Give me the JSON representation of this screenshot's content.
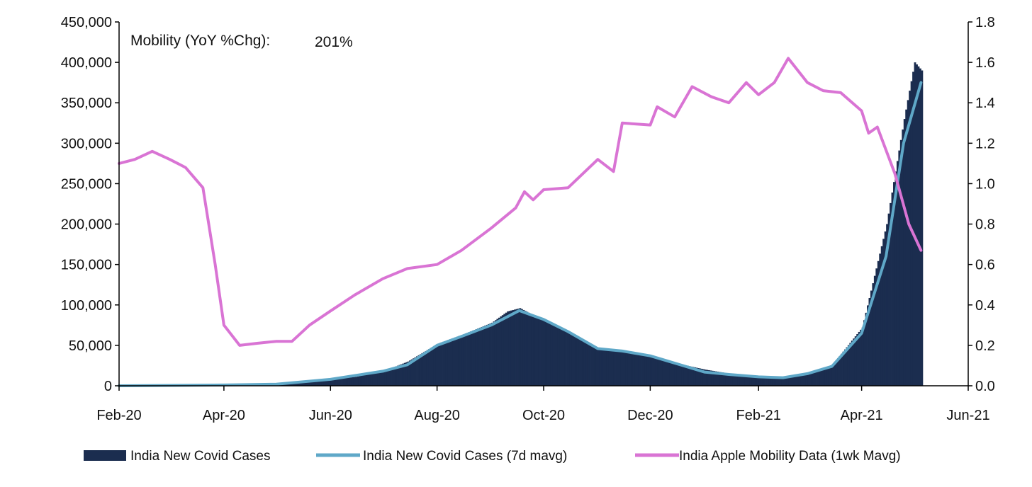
{
  "annotation": {
    "label": "Mobility (YoY %Chg):",
    "value": "201%"
  },
  "colors": {
    "cases_bars": "#1b2d4f",
    "cases_mavg": "#5fa8c8",
    "mobility": "#d974d4",
    "axis": "#000000"
  },
  "chart_data": {
    "type": "bar",
    "title": "",
    "xlabel": "",
    "ylabel": "",
    "x_ticks": [
      "Feb-20",
      "Apr-20",
      "Jun-20",
      "Aug-20",
      "Oct-20",
      "Dec-20",
      "Feb-21",
      "Apr-21",
      "Jun-21"
    ],
    "y_left": {
      "range": [
        0,
        450000
      ],
      "ticks": [
        "0",
        "50,000",
        "100,000",
        "150,000",
        "200,000",
        "250,000",
        "300,000",
        "350,000",
        "400,000",
        "450,000"
      ]
    },
    "y_right": {
      "range": [
        0,
        1.8
      ],
      "ticks": [
        "0.0",
        "0.2",
        "0.4",
        "0.6",
        "0.8",
        "1.0",
        "1.2",
        "1.4",
        "1.6",
        "1.8"
      ]
    },
    "legend_position": "bottom",
    "series": [
      {
        "name": "India New Covid Cases",
        "type": "bar",
        "axis": "left",
        "points": [
          [
            "2020-02-01",
            0
          ],
          [
            "2020-03-01",
            100
          ],
          [
            "2020-04-01",
            1000
          ],
          [
            "2020-04-15",
            1200
          ],
          [
            "2020-05-01",
            2000
          ],
          [
            "2020-05-15",
            4000
          ],
          [
            "2020-06-01",
            8000
          ],
          [
            "2020-06-15",
            11000
          ],
          [
            "2020-07-01",
            18000
          ],
          [
            "2020-07-15",
            30000
          ],
          [
            "2020-08-01",
            52000
          ],
          [
            "2020-08-15",
            63000
          ],
          [
            "2020-09-01",
            78000
          ],
          [
            "2020-09-10",
            92000
          ],
          [
            "2020-09-17",
            96000
          ],
          [
            "2020-10-01",
            80000
          ],
          [
            "2020-10-15",
            67000
          ],
          [
            "2020-11-01",
            46000
          ],
          [
            "2020-11-15",
            44000
          ],
          [
            "2020-12-01",
            38000
          ],
          [
            "2020-12-15",
            28000
          ],
          [
            "2021-01-01",
            20000
          ],
          [
            "2021-01-15",
            15000
          ],
          [
            "2021-02-01",
            11000
          ],
          [
            "2021-02-15",
            11000
          ],
          [
            "2021-03-01",
            15000
          ],
          [
            "2021-03-15",
            26000
          ],
          [
            "2021-04-01",
            72000
          ],
          [
            "2021-04-15",
            200000
          ],
          [
            "2021-04-25",
            330000
          ],
          [
            "2021-05-01",
            400000
          ],
          [
            "2021-05-05",
            390000
          ]
        ]
      },
      {
        "name": "India New Covid Cases (7d mavg)",
        "type": "line",
        "axis": "left",
        "points": [
          [
            "2020-02-01",
            0
          ],
          [
            "2020-04-01",
            1000
          ],
          [
            "2020-05-01",
            2000
          ],
          [
            "2020-06-01",
            8000
          ],
          [
            "2020-07-01",
            18000
          ],
          [
            "2020-07-15",
            26000
          ],
          [
            "2020-08-01",
            50000
          ],
          [
            "2020-08-15",
            61000
          ],
          [
            "2020-09-01",
            75000
          ],
          [
            "2020-09-17",
            93000
          ],
          [
            "2020-10-01",
            82000
          ],
          [
            "2020-10-15",
            67000
          ],
          [
            "2020-11-01",
            46000
          ],
          [
            "2020-11-15",
            43000
          ],
          [
            "2020-12-01",
            37000
          ],
          [
            "2020-12-15",
            28000
          ],
          [
            "2021-01-01",
            17000
          ],
          [
            "2021-01-15",
            14000
          ],
          [
            "2021-02-01",
            11000
          ],
          [
            "2021-02-15",
            10000
          ],
          [
            "2021-03-01",
            15000
          ],
          [
            "2021-03-15",
            24000
          ],
          [
            "2021-04-01",
            65000
          ],
          [
            "2021-04-15",
            160000
          ],
          [
            "2021-04-25",
            300000
          ],
          [
            "2021-05-05",
            375000
          ]
        ]
      },
      {
        "name": "India Apple Mobility Data (1wk Mavg)",
        "type": "line",
        "axis": "right",
        "points": [
          [
            "2020-02-01",
            1.1
          ],
          [
            "2020-02-10",
            1.12
          ],
          [
            "2020-02-20",
            1.16
          ],
          [
            "2020-03-01",
            1.12
          ],
          [
            "2020-03-10",
            1.08
          ],
          [
            "2020-03-20",
            0.98
          ],
          [
            "2020-03-27",
            0.6
          ],
          [
            "2020-04-01",
            0.3
          ],
          [
            "2020-04-10",
            0.2
          ],
          [
            "2020-04-20",
            0.21
          ],
          [
            "2020-05-01",
            0.22
          ],
          [
            "2020-05-10",
            0.22
          ],
          [
            "2020-05-20",
            0.3
          ],
          [
            "2020-06-01",
            0.37
          ],
          [
            "2020-06-15",
            0.45
          ],
          [
            "2020-07-01",
            0.53
          ],
          [
            "2020-07-15",
            0.58
          ],
          [
            "2020-08-01",
            0.6
          ],
          [
            "2020-08-15",
            0.67
          ],
          [
            "2020-09-01",
            0.78
          ],
          [
            "2020-09-15",
            0.88
          ],
          [
            "2020-09-20",
            0.96
          ],
          [
            "2020-09-25",
            0.92
          ],
          [
            "2020-10-01",
            0.97
          ],
          [
            "2020-10-15",
            0.98
          ],
          [
            "2020-11-01",
            1.12
          ],
          [
            "2020-11-10",
            1.06
          ],
          [
            "2020-11-15",
            1.3
          ],
          [
            "2020-12-01",
            1.29
          ],
          [
            "2020-12-05",
            1.38
          ],
          [
            "2020-12-15",
            1.33
          ],
          [
            "2020-12-25",
            1.48
          ],
          [
            "2021-01-05",
            1.43
          ],
          [
            "2021-01-15",
            1.4
          ],
          [
            "2021-01-25",
            1.5
          ],
          [
            "2021-02-01",
            1.44
          ],
          [
            "2021-02-10",
            1.5
          ],
          [
            "2021-02-18",
            1.62
          ],
          [
            "2021-03-01",
            1.5
          ],
          [
            "2021-03-10",
            1.46
          ],
          [
            "2021-03-20",
            1.45
          ],
          [
            "2021-04-01",
            1.36
          ],
          [
            "2021-04-05",
            1.25
          ],
          [
            "2021-04-10",
            1.28
          ],
          [
            "2021-04-20",
            1.05
          ],
          [
            "2021-04-28",
            0.8
          ],
          [
            "2021-05-05",
            0.67
          ]
        ]
      }
    ]
  }
}
